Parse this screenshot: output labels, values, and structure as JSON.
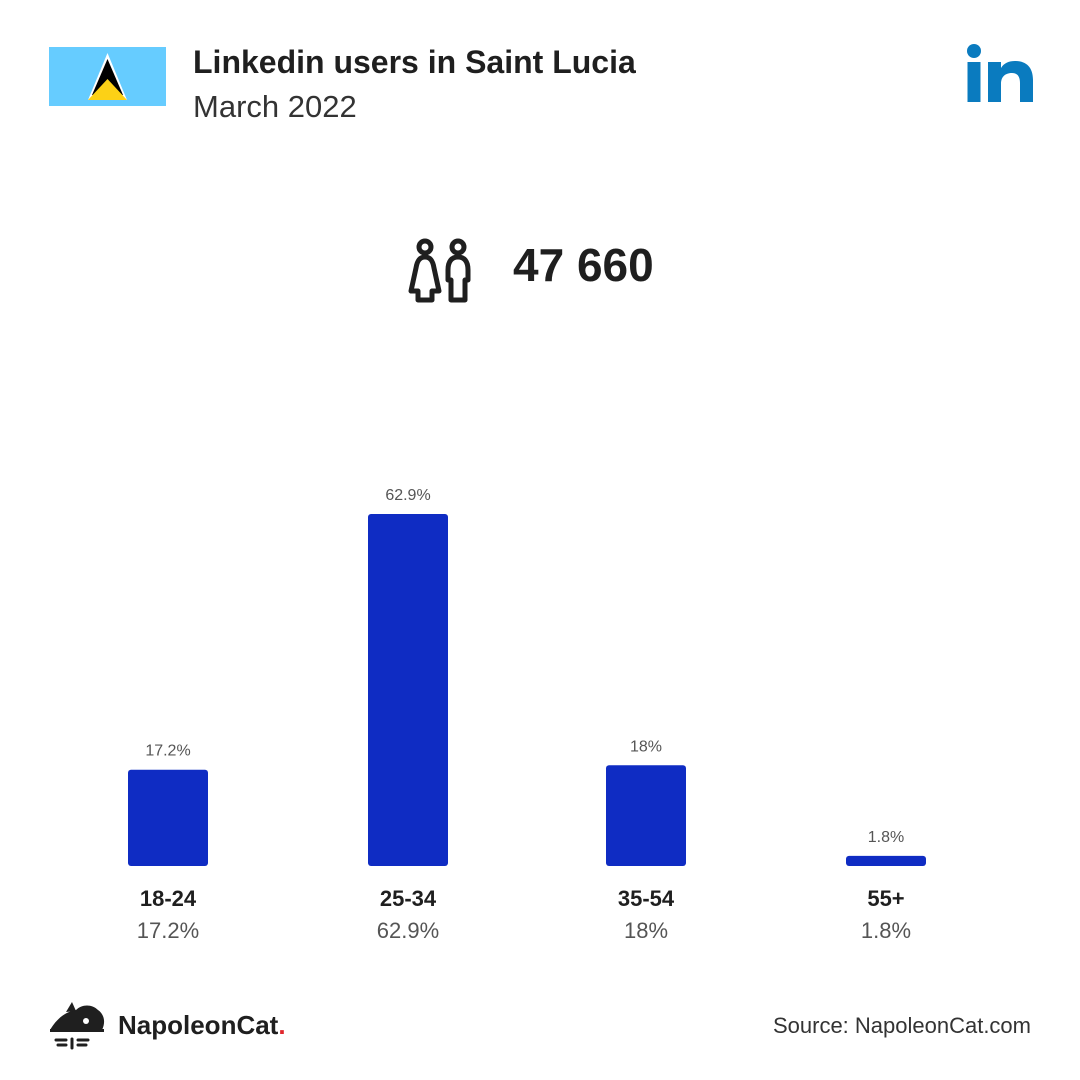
{
  "header": {
    "title": "Linkedin users in Saint Lucia",
    "subtitle": "March 2022",
    "flag_icon": "saint-lucia-flag-icon",
    "platform_icon": "linkedin-icon"
  },
  "summary": {
    "icon": "people-icon",
    "total_users": "47 660"
  },
  "colors": {
    "bar": "#0f2cc3",
    "linkedin": "#0a7bbf",
    "text": "#1f1f1f",
    "muted": "#555555",
    "brand_dot": "#e0262b"
  },
  "chart_data": {
    "type": "bar",
    "categories": [
      "18-24",
      "25-34",
      "35-54",
      "55+"
    ],
    "values": [
      17.2,
      62.9,
      18,
      1.8
    ],
    "value_labels": [
      "17.2%",
      "62.9%",
      "18%",
      "1.8%"
    ],
    "title": "",
    "xlabel": "",
    "ylabel": "",
    "unit": "%",
    "grid": false,
    "legend": "none"
  },
  "footer": {
    "brand_name": "NapoleonCat",
    "brand_dot": ".",
    "source": "Source: NapoleonCat.com",
    "logo_icon": "napoleoncat-logo-icon"
  }
}
